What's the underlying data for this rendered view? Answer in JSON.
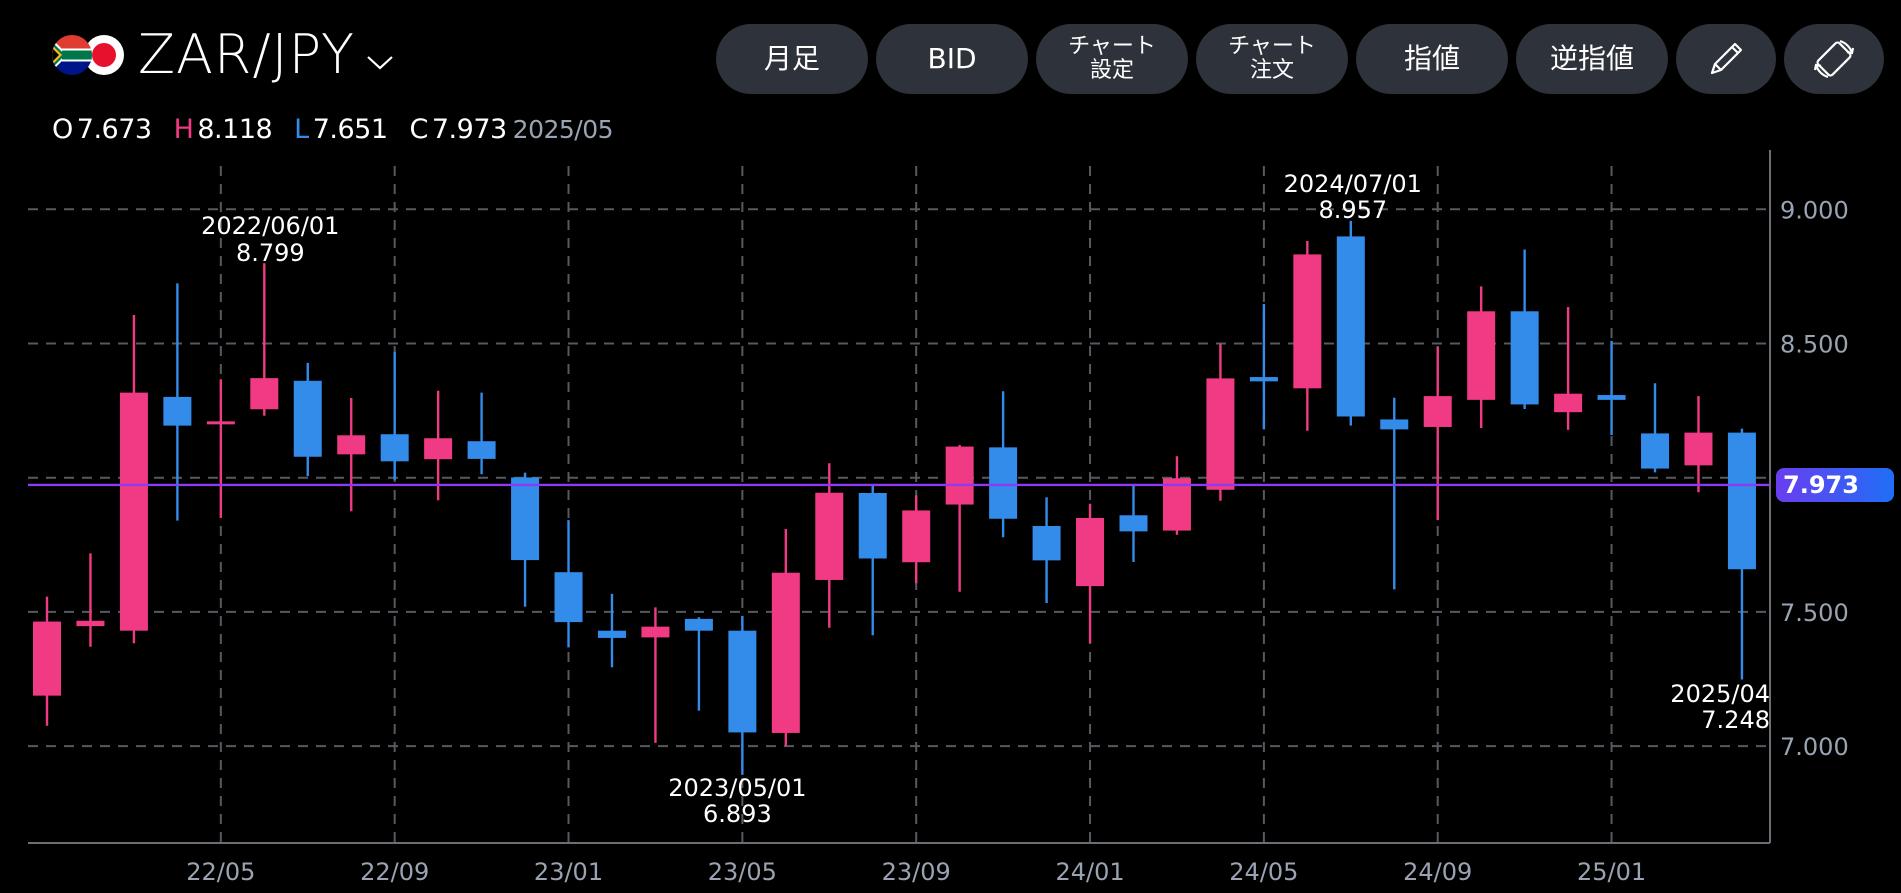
{
  "header": {
    "symbol": "ZAR/JPY",
    "flags": [
      "south-africa-flag",
      "japan-flag"
    ],
    "ohlc": {
      "o_label": "O",
      "o": "7.673",
      "h_label": "H",
      "h": "8.118",
      "l_label": "L",
      "l": "7.651",
      "c_label": "C",
      "c": "7.973",
      "date": "2025/05"
    }
  },
  "toolbar": {
    "period": "月足",
    "price_type": "BID",
    "chart_settings_line1": "チャート",
    "chart_settings_line2": "設定",
    "chart_order_line1": "チャート",
    "chart_order_line2": "注文",
    "limit": "指値",
    "stop": "逆指値",
    "draw_icon": "pencil-icon",
    "rotate_icon": "rotate-screen-icon"
  },
  "colors": {
    "up": "#f03a83",
    "down": "#338bea",
    "price_line": "#8a3cf0",
    "grid": "#555a61",
    "axis_text": "#9aa3b2",
    "button_bg": "#2e323a"
  },
  "current_price_tag": "7.973",
  "chart_data": {
    "type": "candlestick",
    "title": "ZAR/JPY 月足 BID",
    "xlabel": "",
    "ylabel": "",
    "ylim": [
      6.7,
      9.17
    ],
    "y_ticks": [
      9.0,
      8.5,
      7.5,
      7.0
    ],
    "y_tick_labels": [
      "9.000",
      "8.500",
      "7.500",
      "7.000"
    ],
    "x_tick_labels": [
      "22/05",
      "22/09",
      "23/01",
      "23/05",
      "23/09",
      "24/01",
      "24/05",
      "24/09",
      "25/01"
    ],
    "grid": true,
    "current_price": 7.973,
    "annotations": [
      {
        "date": "2022/06/01",
        "value": "8.799",
        "type": "high"
      },
      {
        "date": "2023/05/01",
        "value": "6.893",
        "type": "low"
      },
      {
        "date": "2024/07/01",
        "value": "8.957",
        "type": "high"
      },
      {
        "date": "2025/04",
        "value": "7.248",
        "type": "low"
      }
    ],
    "candles": [
      {
        "d": "22/01",
        "o": 7.188,
        "h": 7.557,
        "l": 7.076,
        "c": 7.464
      },
      {
        "d": "22/02",
        "o": 7.447,
        "h": 7.718,
        "l": 7.37,
        "c": 7.467
      },
      {
        "d": "22/03",
        "o": 7.43,
        "h": 8.606,
        "l": 7.383,
        "c": 8.317
      },
      {
        "d": "22/04",
        "o": 8.301,
        "h": 8.724,
        "l": 7.84,
        "c": 8.194
      },
      {
        "d": "22/05",
        "o": 8.2,
        "h": 8.367,
        "l": 7.851,
        "c": 8.21
      },
      {
        "d": "22/06",
        "o": 8.255,
        "h": 8.799,
        "l": 8.231,
        "c": 8.371
      },
      {
        "d": "22/07",
        "o": 8.361,
        "h": 8.428,
        "l": 8.006,
        "c": 8.078
      },
      {
        "d": "22/08",
        "o": 8.087,
        "h": 8.297,
        "l": 7.875,
        "c": 8.158
      },
      {
        "d": "22/09",
        "o": 8.162,
        "h": 8.469,
        "l": 7.991,
        "c": 8.061
      },
      {
        "d": "22/10",
        "o": 8.069,
        "h": 8.324,
        "l": 7.916,
        "c": 8.147
      },
      {
        "d": "22/11",
        "o": 8.136,
        "h": 8.317,
        "l": 8.013,
        "c": 8.07
      },
      {
        "d": "22/12",
        "o": 8.001,
        "h": 8.019,
        "l": 7.519,
        "c": 7.693
      },
      {
        "d": "23/01",
        "o": 7.648,
        "h": 7.842,
        "l": 7.368,
        "c": 7.462
      },
      {
        "d": "23/02",
        "o": 7.43,
        "h": 7.567,
        "l": 7.294,
        "c": 7.403
      },
      {
        "d": "23/03",
        "o": 7.405,
        "h": 7.517,
        "l": 7.012,
        "c": 7.445
      },
      {
        "d": "23/04",
        "o": 7.474,
        "h": 7.48,
        "l": 7.132,
        "c": 7.43
      },
      {
        "d": "23/05",
        "o": 7.43,
        "h": 7.485,
        "l": 6.893,
        "c": 7.051
      },
      {
        "d": "23/06",
        "o": 7.049,
        "h": 7.809,
        "l": 7.001,
        "c": 7.646
      },
      {
        "d": "23/07",
        "o": 7.619,
        "h": 8.054,
        "l": 7.441,
        "c": 7.944
      },
      {
        "d": "23/08",
        "o": 7.943,
        "h": 7.969,
        "l": 7.413,
        "c": 7.699
      },
      {
        "d": "23/09",
        "o": 7.685,
        "h": 7.934,
        "l": 7.607,
        "c": 7.878
      },
      {
        "d": "23/10",
        "o": 7.9,
        "h": 8.122,
        "l": 7.575,
        "c": 8.116
      },
      {
        "d": "23/11",
        "o": 8.113,
        "h": 8.322,
        "l": 7.778,
        "c": 7.847
      },
      {
        "d": "23/12",
        "o": 7.82,
        "h": 7.927,
        "l": 7.533,
        "c": 7.692
      },
      {
        "d": "24/01",
        "o": 7.596,
        "h": 7.903,
        "l": 7.383,
        "c": 7.85
      },
      {
        "d": "24/02",
        "o": 7.86,
        "h": 7.972,
        "l": 7.686,
        "c": 7.8
      },
      {
        "d": "24/03",
        "o": 7.803,
        "h": 8.08,
        "l": 7.787,
        "c": 7.998
      },
      {
        "d": "24/04",
        "o": 7.955,
        "h": 8.5,
        "l": 7.914,
        "c": 8.37
      },
      {
        "d": "24/05",
        "o": 8.375,
        "h": 8.647,
        "l": 8.18,
        "c": 8.359
      },
      {
        "d": "24/06",
        "o": 8.333,
        "h": 8.882,
        "l": 8.175,
        "c": 8.832
      },
      {
        "d": "24/07",
        "o": 8.899,
        "h": 8.957,
        "l": 8.194,
        "c": 8.228
      },
      {
        "d": "24/08",
        "o": 8.217,
        "h": 8.298,
        "l": 7.584,
        "c": 8.18
      },
      {
        "d": "24/09",
        "o": 8.189,
        "h": 8.488,
        "l": 7.842,
        "c": 8.304
      },
      {
        "d": "24/10",
        "o": 8.29,
        "h": 8.713,
        "l": 8.185,
        "c": 8.62
      },
      {
        "d": "24/11",
        "o": 8.62,
        "h": 8.85,
        "l": 8.256,
        "c": 8.273
      },
      {
        "d": "24/12",
        "o": 8.244,
        "h": 8.636,
        "l": 8.178,
        "c": 8.313
      },
      {
        "d": "25/01",
        "o": 8.308,
        "h": 8.51,
        "l": 8.159,
        "c": 8.29
      },
      {
        "d": "25/02",
        "o": 8.165,
        "h": 8.352,
        "l": 8.02,
        "c": 8.034
      },
      {
        "d": "25/03",
        "o": 8.046,
        "h": 8.304,
        "l": 7.946,
        "c": 8.168
      },
      {
        "d": "25/04",
        "o": 8.168,
        "h": 8.183,
        "l": 7.248,
        "c": 7.659
      }
    ]
  }
}
